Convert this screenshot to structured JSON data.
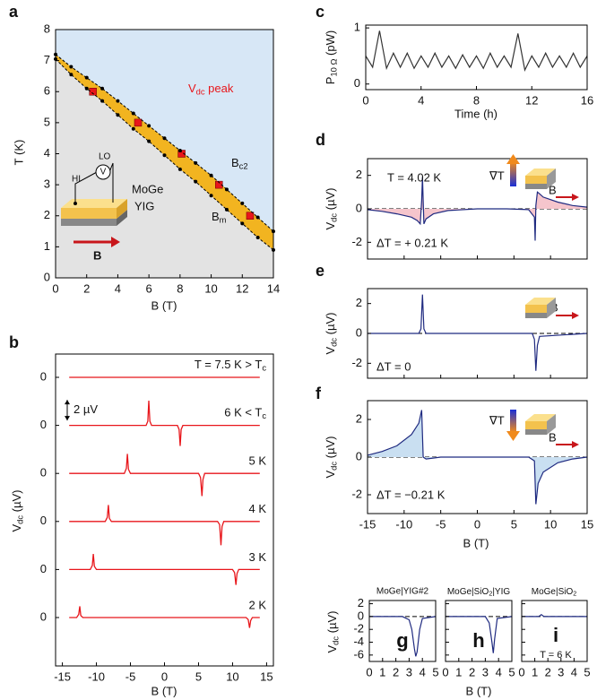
{
  "chart_data": [
    {
      "panel": "a",
      "type": "scatter",
      "xlabel": "B (T)",
      "ylabel": "T (K)",
      "xlim": [
        0,
        14
      ],
      "ylim": [
        0,
        8
      ],
      "xticks": [
        0,
        2,
        4,
        6,
        8,
        10,
        12,
        14
      ],
      "yticks": [
        0,
        1,
        2,
        3,
        4,
        5,
        6,
        7,
        8
      ],
      "regions": {
        "above": "#d7e7f6",
        "band": "#f2b420",
        "below": "#e3e3e3"
      },
      "series": [
        {
          "color": "#e8161b",
          "marker": "square",
          "x": [
            2.4,
            5.3,
            8.1,
            10.5,
            12.5
          ],
          "values": [
            6.0,
            5.0,
            4.0,
            3.0,
            2.0
          ]
        },
        {
          "color": "#000000",
          "marker": "dot-line",
          "x": [
            0,
            1,
            2,
            3,
            4,
            5,
            6,
            7,
            8,
            9,
            10,
            11,
            12,
            13,
            14
          ],
          "values": [
            7.2,
            6.8,
            6.45,
            6.1,
            5.7,
            5.3,
            4.9,
            4.5,
            4.1,
            3.7,
            3.3,
            2.85,
            2.4,
            1.95,
            1.5
          ]
        },
        {
          "color": "#000000",
          "marker": "dot-line",
          "x": [
            0,
            1,
            2,
            3,
            4,
            5,
            6,
            7,
            8,
            9,
            10,
            11,
            12,
            13,
            14
          ],
          "values": [
            7.05,
            6.55,
            6.1,
            5.7,
            5.25,
            4.8,
            4.4,
            3.95,
            3.5,
            3.1,
            2.65,
            2.2,
            1.75,
            1.3,
            0.9
          ]
        }
      ],
      "annotations": [
        {
          "base": "V",
          "sub": "dc",
          "unit": " peak"
        },
        {
          "base": "B",
          "sub": "c2"
        },
        {
          "base": "B",
          "sub": "m"
        },
        "HI",
        "LO",
        "V",
        "MoGe",
        "YIG",
        "B"
      ]
    },
    {
      "panel": "b",
      "type": "waterfall",
      "xlabel": "B (T)",
      "ylabel": {
        "base": "V",
        "sub": "dc",
        "unit": " (µV)"
      },
      "xlim": [
        -16,
        16
      ],
      "xticks": [
        -15,
        -10,
        -5,
        0,
        5,
        10,
        15
      ],
      "scale_bar": {
        "value": 2,
        "label": "2 µV"
      },
      "series": [
        {
          "label": {
            "base": "T = 7.5 K > T",
            "sub": "c"
          },
          "baseline": 0,
          "color": "#e8161b",
          "x": [
            -14,
            14
          ],
          "values": [
            0,
            0
          ]
        },
        {
          "label": {
            "base": "6 K < T",
            "sub": "c"
          },
          "baseline": 0,
          "color": "#e8161b",
          "x": [
            -14,
            -2.7,
            -2.45,
            -2.3,
            -2.15,
            -1.9,
            1.9,
            2.15,
            2.3,
            2.45,
            2.7,
            14
          ],
          "values": [
            0,
            0,
            0.4,
            2.4,
            0.4,
            0,
            0,
            -0.4,
            -2.0,
            -0.4,
            0,
            0
          ]
        },
        {
          "label": "5 K",
          "baseline": 0,
          "color": "#e8161b",
          "x": [
            -14,
            -5.9,
            -5.6,
            -5.45,
            -5.3,
            -5.0,
            5.0,
            5.3,
            5.5,
            5.65,
            5.9,
            14
          ],
          "values": [
            0,
            0,
            0.5,
            1.9,
            0.4,
            0,
            0,
            -0.4,
            -2.2,
            -0.6,
            0,
            0
          ]
        },
        {
          "label": "4 K",
          "baseline": 0,
          "color": "#e8161b",
          "x": [
            -14,
            -8.7,
            -8.4,
            -8.25,
            -8.1,
            -7.8,
            7.8,
            8.1,
            8.3,
            8.45,
            8.7,
            14
          ],
          "values": [
            0,
            0,
            0.4,
            1.6,
            0.3,
            0,
            0,
            -0.3,
            -2.3,
            -0.5,
            0,
            0
          ]
        },
        {
          "label": "3 K",
          "baseline": 0,
          "color": "#e8161b",
          "x": [
            -14,
            -10.9,
            -10.6,
            -10.45,
            -10.3,
            -10.0,
            10.0,
            10.3,
            10.5,
            10.65,
            10.9,
            14
          ],
          "values": [
            0,
            0,
            0.4,
            1.5,
            0.3,
            0,
            0,
            -0.3,
            -1.5,
            -0.4,
            0,
            0
          ]
        },
        {
          "label": "2 K",
          "baseline": 0,
          "color": "#e8161b",
          "x": [
            -14,
            -12.9,
            -12.6,
            -12.45,
            -12.3,
            -12.0,
            12.0,
            12.3,
            12.5,
            12.65,
            12.9,
            14
          ],
          "values": [
            0,
            0,
            0.3,
            1.1,
            0.2,
            0,
            0,
            -0.2,
            -1.0,
            -0.3,
            0,
            0
          ]
        }
      ]
    },
    {
      "panel": "c",
      "type": "line",
      "xlabel": "Time (h)",
      "ylabel": {
        "base": "P",
        "sub": "10 Ω",
        "unit": " (pW)"
      },
      "xlim": [
        0,
        16
      ],
      "ylim": [
        -0.1,
        1.05
      ],
      "xticks": [
        0,
        4,
        8,
        12,
        16
      ],
      "yticks": [
        0,
        1
      ],
      "series": [
        {
          "color": "#333333",
          "x": [
            0,
            0.5,
            1,
            1.5,
            2,
            2.5,
            3,
            3.5,
            4,
            4.5,
            5,
            5.5,
            6,
            6.5,
            7,
            7.5,
            8,
            8.5,
            9,
            9.5,
            10,
            10.5,
            11,
            11.5,
            12,
            12.5,
            13,
            13.5,
            14,
            14.5,
            15,
            15.5,
            16
          ],
          "values": [
            0.5,
            0.3,
            0.95,
            0.28,
            0.55,
            0.3,
            0.55,
            0.28,
            0.5,
            0.3,
            0.55,
            0.3,
            0.5,
            0.28,
            0.52,
            0.3,
            0.5,
            0.28,
            0.55,
            0.3,
            0.5,
            0.3,
            0.9,
            0.25,
            0.5,
            0.3,
            0.55,
            0.3,
            0.5,
            0.3,
            0.55,
            0.3,
            0.5
          ]
        }
      ]
    },
    {
      "panel": "d",
      "type": "line",
      "ylabel": {
        "base": "V",
        "sub": "dc",
        "unit": " (µV)"
      },
      "xlim": [
        -15,
        15
      ],
      "ylim": [
        -3,
        3
      ],
      "xticks": [
        -15,
        -10,
        -5,
        0,
        5,
        10,
        15
      ],
      "show_xtick_labels": false,
      "yticks": [
        -2,
        0,
        2
      ],
      "zero_line": true,
      "series": [
        {
          "color": "#1f2a80",
          "fill": "#f5c5cc",
          "x": [
            -15,
            -13,
            -11,
            -9,
            -8.2,
            -7.8,
            -7.6,
            -7.5,
            -7.3,
            -7,
            -6,
            -4,
            0,
            4,
            7,
            7.8,
            7.9,
            8,
            8.2,
            8.5,
            9,
            11,
            13,
            15
          ],
          "values": [
            -0.05,
            -0.15,
            -0.3,
            -0.5,
            -0.7,
            -0.9,
            0.5,
            1.9,
            -0.9,
            -0.6,
            -0.3,
            -0.1,
            0,
            0,
            -0.05,
            -0.5,
            -1.9,
            0.2,
            1,
            0.9,
            0.7,
            0.4,
            0.2,
            0.1
          ]
        }
      ],
      "annotations": [
        "T = 4.02 K",
        "ΔT = + 0.21 K",
        "∇T",
        "B"
      ]
    },
    {
      "panel": "e",
      "type": "line",
      "ylabel": {
        "base": "V",
        "sub": "dc",
        "unit": " (µV)"
      },
      "xlim": [
        -15,
        15
      ],
      "ylim": [
        -3,
        3
      ],
      "xticks": [
        -15,
        -10,
        -5,
        0,
        5,
        10,
        15
      ],
      "show_xtick_labels": false,
      "yticks": [
        -2,
        0,
        2
      ],
      "zero_line": true,
      "series": [
        {
          "color": "#1f2a80",
          "x": [
            -15,
            -8,
            -7.7,
            -7.5,
            -7.3,
            -7,
            0,
            7.5,
            7.8,
            8,
            8.2,
            8.5,
            15
          ],
          "values": [
            0,
            0,
            0.3,
            2.6,
            0.3,
            0,
            0,
            0,
            -0.4,
            -2.5,
            -0.8,
            -0.2,
            0
          ]
        }
      ],
      "annotations": [
        "ΔT = 0",
        "B"
      ]
    },
    {
      "panel": "f",
      "type": "line",
      "xlabel": "B (T)",
      "ylabel": {
        "base": "V",
        "sub": "dc",
        "unit": " (µV)"
      },
      "xlim": [
        -15,
        15
      ],
      "ylim": [
        -3,
        3
      ],
      "xticks": [
        -15,
        -10,
        -5,
        0,
        5,
        10,
        15
      ],
      "yticks": [
        -2,
        0,
        2
      ],
      "zero_line": true,
      "series": [
        {
          "color": "#1f2a80",
          "fill": "#c9dff1",
          "x": [
            -15,
            -13,
            -11,
            -9,
            -8,
            -7.6,
            -7.4,
            -7,
            -5,
            0,
            7,
            7.8,
            8,
            8.3,
            9,
            11,
            13,
            15
          ],
          "values": [
            0.1,
            0.3,
            0.6,
            1.2,
            1.8,
            2.5,
            0,
            -0.1,
            0,
            0,
            0,
            -0.2,
            -2.5,
            -1.4,
            -0.8,
            -0.3,
            -0.1,
            0
          ]
        }
      ],
      "annotations": [
        "∇T",
        "B",
        "ΔT = −0.21 K"
      ]
    },
    {
      "panel": "g",
      "type": "line",
      "title": "MoGe|YIG#2",
      "ylabel": {
        "base": "V",
        "sub": "dc",
        "unit": " (µV)"
      },
      "xlim": [
        0,
        5
      ],
      "ylim": [
        -7,
        2.5
      ],
      "xticks": [
        0,
        1,
        2,
        3,
        4,
        5
      ],
      "yticks": [
        2,
        0,
        -2,
        -4,
        -6
      ],
      "zero_line": true,
      "series": [
        {
          "color": "#1f2a80",
          "x": [
            0,
            2.5,
            3,
            3.2,
            3.4,
            3.5,
            3.6,
            3.8,
            4,
            5
          ],
          "values": [
            0,
            0,
            -0.5,
            -2,
            -5,
            -6.2,
            -5.5,
            -2,
            -0.3,
            0
          ]
        }
      ]
    },
    {
      "panel": "h",
      "type": "line",
      "title": {
        "base": "MoGe|SiO",
        "sub": "2",
        "unit": "|YIG"
      },
      "xlabel": "B (T)",
      "xlim": [
        0,
        5
      ],
      "ylim": [
        -7,
        2.5
      ],
      "xticks": [
        0,
        1,
        2,
        3,
        4,
        5
      ],
      "yticks": [
        2,
        0,
        -2,
        -4,
        -6
      ],
      "show_ytick_labels": false,
      "zero_line": true,
      "series": [
        {
          "color": "#1f2a80",
          "x": [
            0,
            3,
            3.3,
            3.5,
            3.6,
            3.7,
            3.9,
            5
          ],
          "values": [
            0,
            0,
            -1,
            -4,
            -5.7,
            -3.5,
            -0.3,
            0
          ]
        }
      ]
    },
    {
      "panel": "i",
      "type": "line",
      "title": {
        "base": "MoGe|SiO",
        "sub": "2"
      },
      "xlim": [
        0,
        5
      ],
      "ylim": [
        -7,
        2.5
      ],
      "xticks": [
        0,
        1,
        2,
        3,
        4,
        5
      ],
      "yticks": [
        2,
        0,
        -2,
        -4,
        -6
      ],
      "show_ytick_labels": false,
      "zero_line": true,
      "series": [
        {
          "color": "#1f2a80",
          "x": [
            0,
            1.3,
            1.5,
            1.7,
            2,
            5
          ],
          "values": [
            0,
            0,
            0.3,
            0,
            0,
            0
          ]
        }
      ],
      "annotations": [
        "T = 6 K"
      ]
    }
  ]
}
